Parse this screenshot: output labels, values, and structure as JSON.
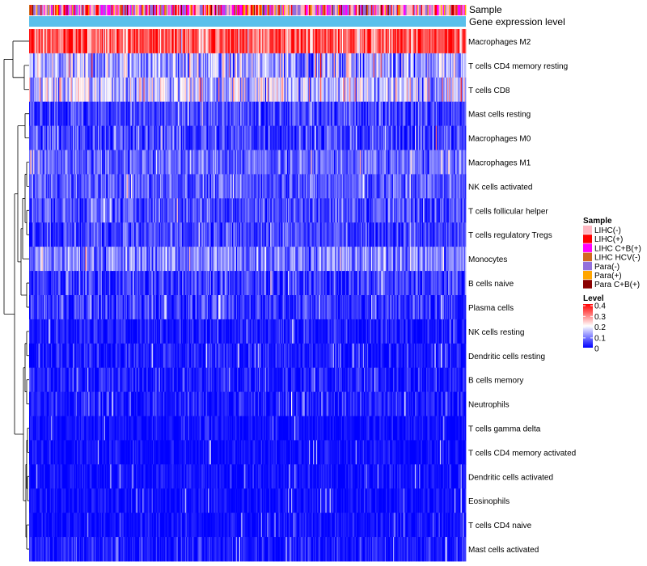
{
  "chart_data": {
    "type": "heatmap",
    "title": "",
    "annotations": {
      "sample_label": "Sample",
      "gene_level_label": "Gene expression level",
      "gene_level_color": "#5bc0eb"
    },
    "rows": [
      {
        "name": "Macrophages M2",
        "mean": 0.33,
        "spread": 0.07
      },
      {
        "name": "T cells CD4 memory resting",
        "mean": 0.13,
        "spread": 0.07
      },
      {
        "name": "T cells CD8",
        "mean": 0.16,
        "spread": 0.07
      },
      {
        "name": "Mast cells resting",
        "mean": 0.05,
        "spread": 0.04
      },
      {
        "name": "Macrophages M0",
        "mean": 0.05,
        "spread": 0.05
      },
      {
        "name": "Macrophages M1",
        "mean": 0.08,
        "spread": 0.04
      },
      {
        "name": "NK cells activated",
        "mean": 0.07,
        "spread": 0.04
      },
      {
        "name": "T cells follicular helper",
        "mean": 0.06,
        "spread": 0.04
      },
      {
        "name": "T cells regulatory  Tregs",
        "mean": 0.05,
        "spread": 0.04
      },
      {
        "name": "Monocytes",
        "mean": 0.1,
        "spread": 0.05
      },
      {
        "name": "B cells naive",
        "mean": 0.04,
        "spread": 0.04
      },
      {
        "name": "Plasma cells",
        "mean": 0.04,
        "spread": 0.04
      },
      {
        "name": "NK cells resting",
        "mean": 0.02,
        "spread": 0.03
      },
      {
        "name": "Dendritic cells resting",
        "mean": 0.02,
        "spread": 0.03
      },
      {
        "name": "B cells memory",
        "mean": 0.02,
        "spread": 0.03
      },
      {
        "name": "Neutrophils",
        "mean": 0.02,
        "spread": 0.03
      },
      {
        "name": "T cells gamma delta",
        "mean": 0.01,
        "spread": 0.02
      },
      {
        "name": "T cells CD4 memory activated",
        "mean": 0.01,
        "spread": 0.02
      },
      {
        "name": "Dendritic cells activated",
        "mean": 0.01,
        "spread": 0.02
      },
      {
        "name": "Eosinophils",
        "mean": 0.01,
        "spread": 0.02
      },
      {
        "name": "T cells CD4 naive",
        "mean": 0.01,
        "spread": 0.02
      },
      {
        "name": "Mast cells activated",
        "mean": 0.02,
        "spread": 0.03
      }
    ],
    "n_samples": 420,
    "legend": {
      "sample_title": "Sample",
      "sample_groups": [
        {
          "label": "LIHC(-)",
          "color": "#ffb6c1"
        },
        {
          "label": "LIHC(+)",
          "color": "#ff0000"
        },
        {
          "label": "LIHC C+B(+)",
          "color": "#ff00ff"
        },
        {
          "label": "LIHC HCV(-)",
          "color": "#d2691e"
        },
        {
          "label": "Para(-)",
          "color": "#9370db"
        },
        {
          "label": "Para(+)",
          "color": "#ffa500"
        },
        {
          "label": "Para C+B(+)",
          "color": "#8b0000"
        }
      ],
      "level_title": "Level",
      "level_ticks": [
        "0.4",
        "0.3",
        "0.2",
        "0.1",
        "0"
      ],
      "level_range": [
        0,
        0.4
      ],
      "level_colors": [
        "#0000ff",
        "#ffffff",
        "#ff0000"
      ]
    }
  }
}
